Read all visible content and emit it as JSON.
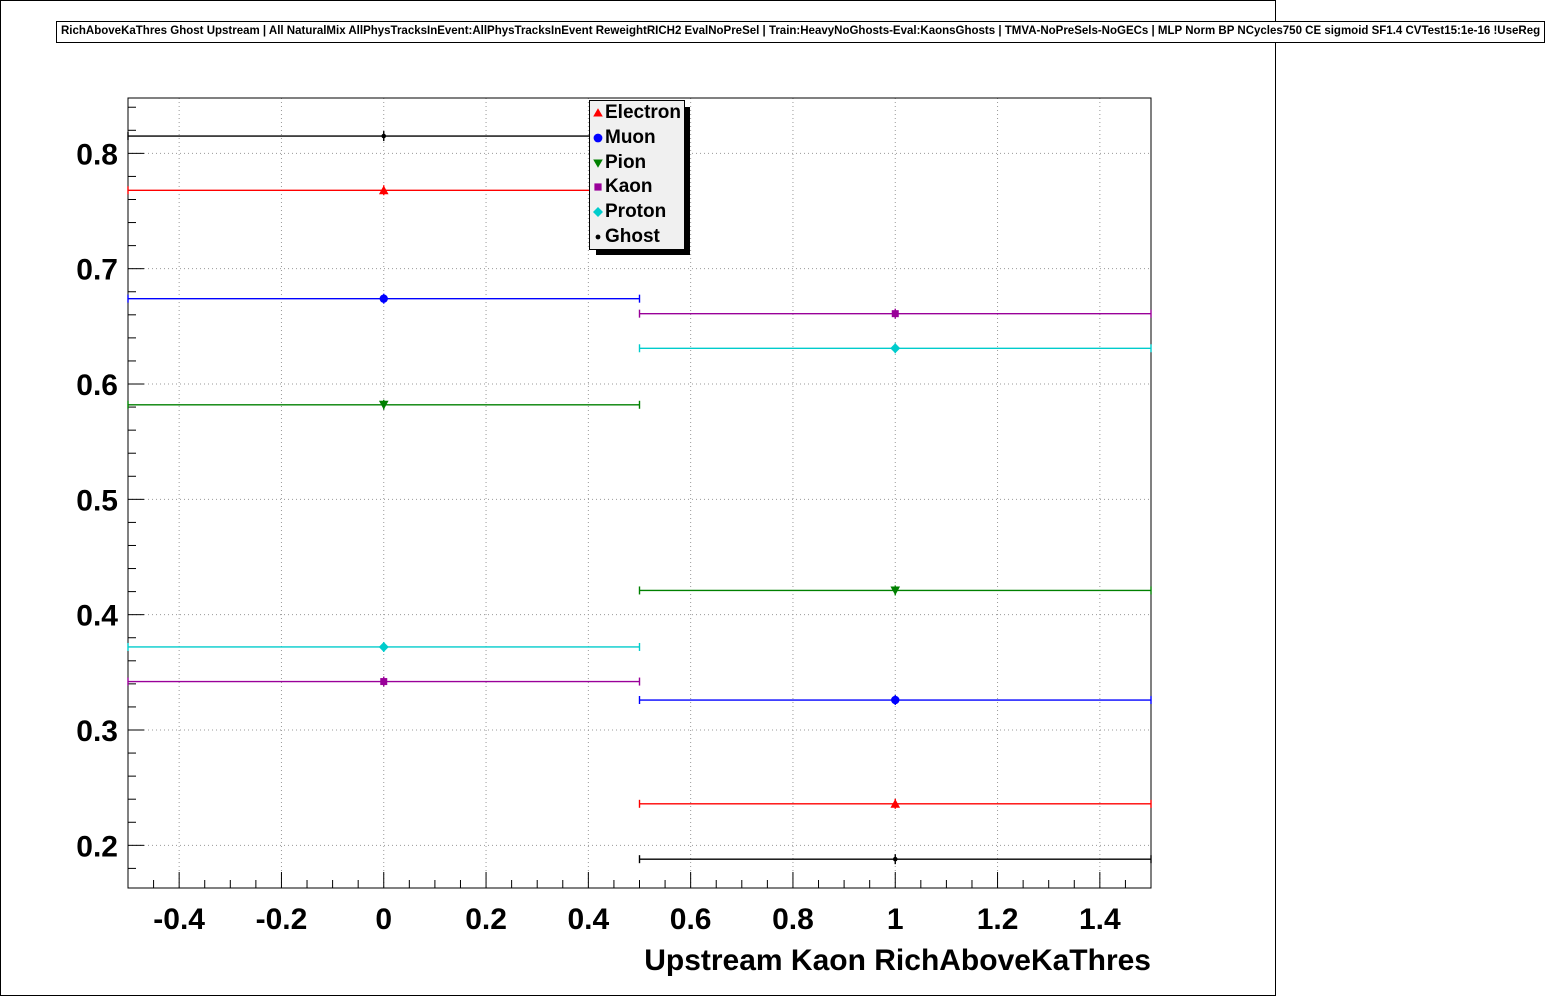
{
  "header": {
    "title": "RichAboveKaThres Ghost Upstream | All NaturalMix AllPhysTracksInEvent:AllPhysTracksInEvent ReweightRICH2 EvalNoPreSel | Train:HeavyNoGhosts-Eval:KaonsGhosts | TMVA-NoPreSels-NoGECs | MLP Norm BP NCycles750 CE sigmoid SF1.4 CVTest15:1e-16 !UseReg"
  },
  "chart_data": {
    "type": "scatter",
    "title": "",
    "xlabel": "Upstream Kaon RichAboveKaThres",
    "ylabel": "",
    "xlim": [
      -0.5,
      1.5
    ],
    "ylim": [
      0.163,
      0.848
    ],
    "x_ticks": [
      -0.4,
      -0.2,
      0,
      0.2,
      0.4,
      0.6,
      0.8,
      1,
      1.2,
      1.4
    ],
    "y_ticks": [
      0.2,
      0.3,
      0.4,
      0.5,
      0.6,
      0.7,
      0.8
    ],
    "x_minor_step": 0.05,
    "y_minor_step": 0.02,
    "grid": true,
    "grid_style": "dotted",
    "legend_position": "top-center",
    "bin_edges": [
      -0.5,
      0.5,
      1.5
    ],
    "x": [
      0,
      1
    ],
    "series": [
      {
        "name": "Electron",
        "marker": "triangle-up",
        "color": "#ff0000",
        "values": [
          0.768,
          0.236
        ]
      },
      {
        "name": "Muon",
        "marker": "circle",
        "color": "#0000ff",
        "values": [
          0.674,
          0.326
        ]
      },
      {
        "name": "Pion",
        "marker": "triangle-down",
        "color": "#008000",
        "values": [
          0.582,
          0.421
        ]
      },
      {
        "name": "Kaon",
        "marker": "square",
        "color": "#990099",
        "values": [
          0.342,
          0.661
        ]
      },
      {
        "name": "Proton",
        "marker": "diamond",
        "color": "#00cccc",
        "values": [
          0.372,
          0.631
        ]
      },
      {
        "name": "Ghost",
        "marker": "dot",
        "color": "#000000",
        "values": [
          0.815,
          0.188
        ]
      }
    ]
  }
}
